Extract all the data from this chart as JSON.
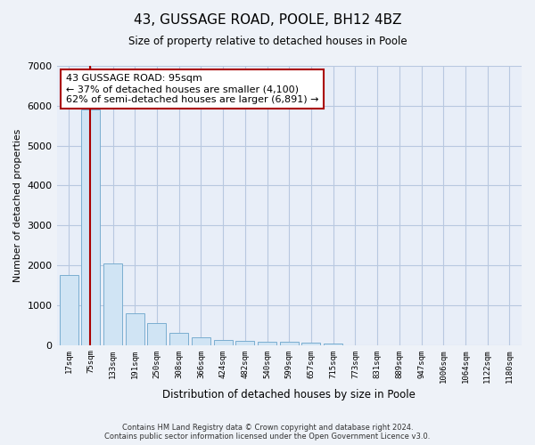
{
  "title": "43, GUSSAGE ROAD, POOLE, BH12 4BZ",
  "subtitle": "Size of property relative to detached houses in Poole",
  "xlabel": "Distribution of detached houses by size in Poole",
  "ylabel": "Number of detached properties",
  "bar_color": "#d0e4f4",
  "bar_edgecolor": "#7aaed0",
  "categories": [
    "17sqm",
    "75sqm",
    "133sqm",
    "191sqm",
    "250sqm",
    "308sqm",
    "366sqm",
    "424sqm",
    "482sqm",
    "540sqm",
    "599sqm",
    "657sqm",
    "715sqm",
    "773sqm",
    "831sqm",
    "889sqm",
    "947sqm",
    "1006sqm",
    "1064sqm",
    "1122sqm",
    "1180sqm"
  ],
  "values": [
    1750,
    5900,
    2050,
    800,
    550,
    300,
    200,
    130,
    100,
    80,
    70,
    50,
    40,
    0,
    0,
    0,
    0,
    0,
    0,
    0,
    0
  ],
  "ylim": [
    0,
    7000
  ],
  "yticks": [
    0,
    1000,
    2000,
    3000,
    4000,
    5000,
    6000,
    7000
  ],
  "vline_color": "#aa0000",
  "annotation_text": "43 GUSSAGE ROAD: 95sqm\n← 37% of detached houses are smaller (4,100)\n62% of semi-detached houses are larger (6,891) →",
  "background_color": "#eef2f8",
  "plot_bg_color": "#e8eef8",
  "grid_color": "#b8c8e0",
  "footer_line1": "Contains HM Land Registry data © Crown copyright and database right 2024.",
  "footer_line2": "Contains public sector information licensed under the Open Government Licence v3.0."
}
